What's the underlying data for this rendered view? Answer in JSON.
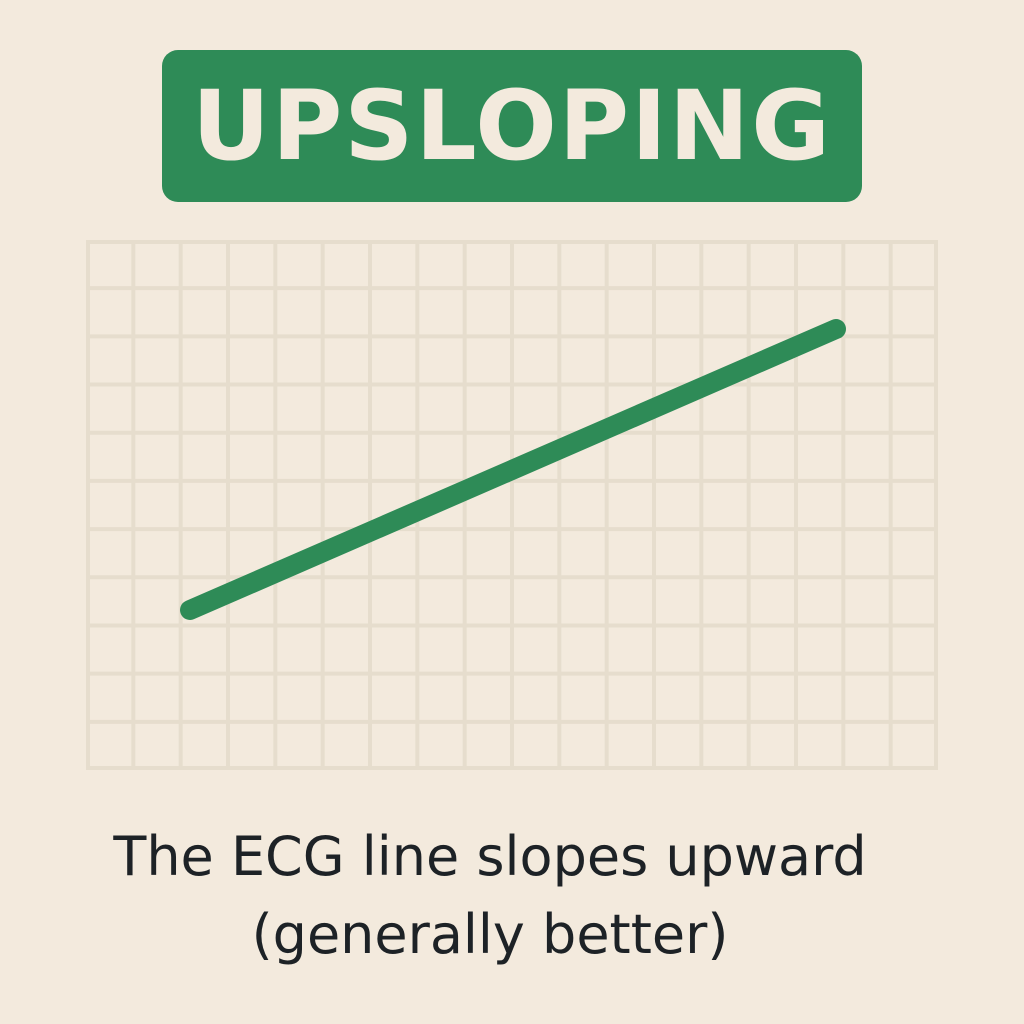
{
  "badge": {
    "label": "UPSLOPING",
    "color": "#2e8b57"
  },
  "diagram": {
    "line_color": "#2e8b57",
    "grid_color": "#e6ddcd",
    "line_shape": "upward-sloping"
  },
  "caption": {
    "line1": "The ECG line slopes upward",
    "line2": "(generally better)"
  }
}
